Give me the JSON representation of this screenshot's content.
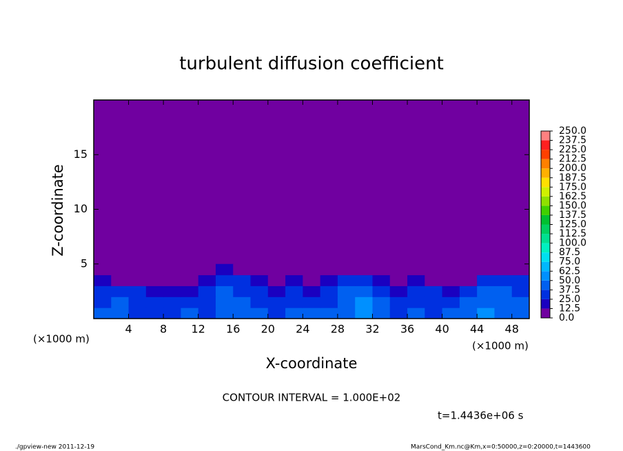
{
  "chart_data": {
    "type": "contour",
    "title": "turbulent diffusion coefficient",
    "x_label": "X-coordinate",
    "y_label": "Z-coordinate",
    "unit_label": "(×1000 m)",
    "xlim": [
      0,
      50
    ],
    "ylim": [
      0,
      20
    ],
    "xticks": [
      4,
      8,
      12,
      16,
      20,
      24,
      28,
      32,
      36,
      40,
      44,
      48
    ],
    "yticks": [
      5,
      10,
      15
    ],
    "x": [
      1,
      3,
      5,
      7,
      9,
      11,
      13,
      15,
      17,
      19,
      21,
      23,
      25,
      27,
      29,
      31,
      33,
      35,
      37,
      39,
      41,
      43,
      45,
      47,
      49
    ],
    "z": [
      0.5,
      1.5,
      2.5,
      3.5,
      4.5
    ],
    "values": [
      [
        40,
        45,
        35,
        30,
        35,
        40,
        35,
        45,
        40,
        40,
        35,
        45,
        40,
        40,
        40,
        55,
        45,
        35,
        40,
        35,
        40,
        45,
        50,
        45,
        40
      ],
      [
        35,
        40,
        30,
        25,
        30,
        25,
        30,
        45,
        40,
        35,
        30,
        35,
        35,
        30,
        45,
        50,
        40,
        30,
        35,
        30,
        35,
        40,
        45,
        45,
        40
      ],
      [
        30,
        30,
        25,
        20,
        15,
        20,
        25,
        40,
        35,
        25,
        20,
        30,
        20,
        25,
        40,
        45,
        35,
        20,
        25,
        30,
        20,
        25,
        40,
        40,
        35
      ],
      [
        15,
        10,
        5,
        5,
        5,
        5,
        15,
        35,
        25,
        15,
        10,
        20,
        5,
        15,
        35,
        35,
        20,
        10,
        15,
        10,
        5,
        5,
        30,
        35,
        25
      ],
      [
        0,
        0,
        0,
        0,
        0,
        0,
        0,
        15,
        5,
        0,
        0,
        5,
        0,
        0,
        0,
        0,
        0,
        0,
        0,
        0,
        0,
        0,
        5,
        10,
        0
      ]
    ],
    "levels": [
      {
        "value": 0,
        "label": "0.0"
      },
      {
        "value": 12.5,
        "label": "12.5"
      },
      {
        "value": 25,
        "label": "25.0"
      },
      {
        "value": 37.5,
        "label": "37.5"
      },
      {
        "value": 50,
        "label": "50.0"
      },
      {
        "value": 62.5,
        "label": "62.5"
      },
      {
        "value": 75,
        "label": "75.0"
      },
      {
        "value": 87.5,
        "label": "87.5"
      },
      {
        "value": 100,
        "label": "100.0"
      },
      {
        "value": 112.5,
        "label": "112.5"
      },
      {
        "value": 125,
        "label": "125.0"
      },
      {
        "value": 137.5,
        "label": "137.5"
      },
      {
        "value": 150,
        "label": "150.0"
      },
      {
        "value": 162.5,
        "label": "162.5"
      },
      {
        "value": 175,
        "label": "175.0"
      },
      {
        "value": 187.5,
        "label": "187.5"
      },
      {
        "value": 200,
        "label": "200.0"
      },
      {
        "value": 212.5,
        "label": "212.5"
      },
      {
        "value": 225,
        "label": "225.0"
      },
      {
        "value": 237.5,
        "label": "237.5"
      },
      {
        "value": 250,
        "label": "250.0"
      }
    ],
    "colors": [
      "#7000a0",
      "#1a00c0",
      "#0030e0",
      "#0060f0",
      "#0090ff",
      "#00b8ff",
      "#00e0f0",
      "#00f0c0",
      "#00e090",
      "#00d060",
      "#00c030",
      "#40d000",
      "#90e000",
      "#d0f000",
      "#ffe000",
      "#ffb000",
      "#ff8000",
      "#ff4000",
      "#ff2020",
      "#ff8080"
    ],
    "contour_note": "CONTOUR INTERVAL = 1.000E+02",
    "time_note": "t=1.4436e+06 s",
    "footer_left": "./gpview-new   2011-12-19",
    "footer_right": "MarsCond_Km.nc@Km,x=0:50000,z=0:20000,t=1443600"
  }
}
